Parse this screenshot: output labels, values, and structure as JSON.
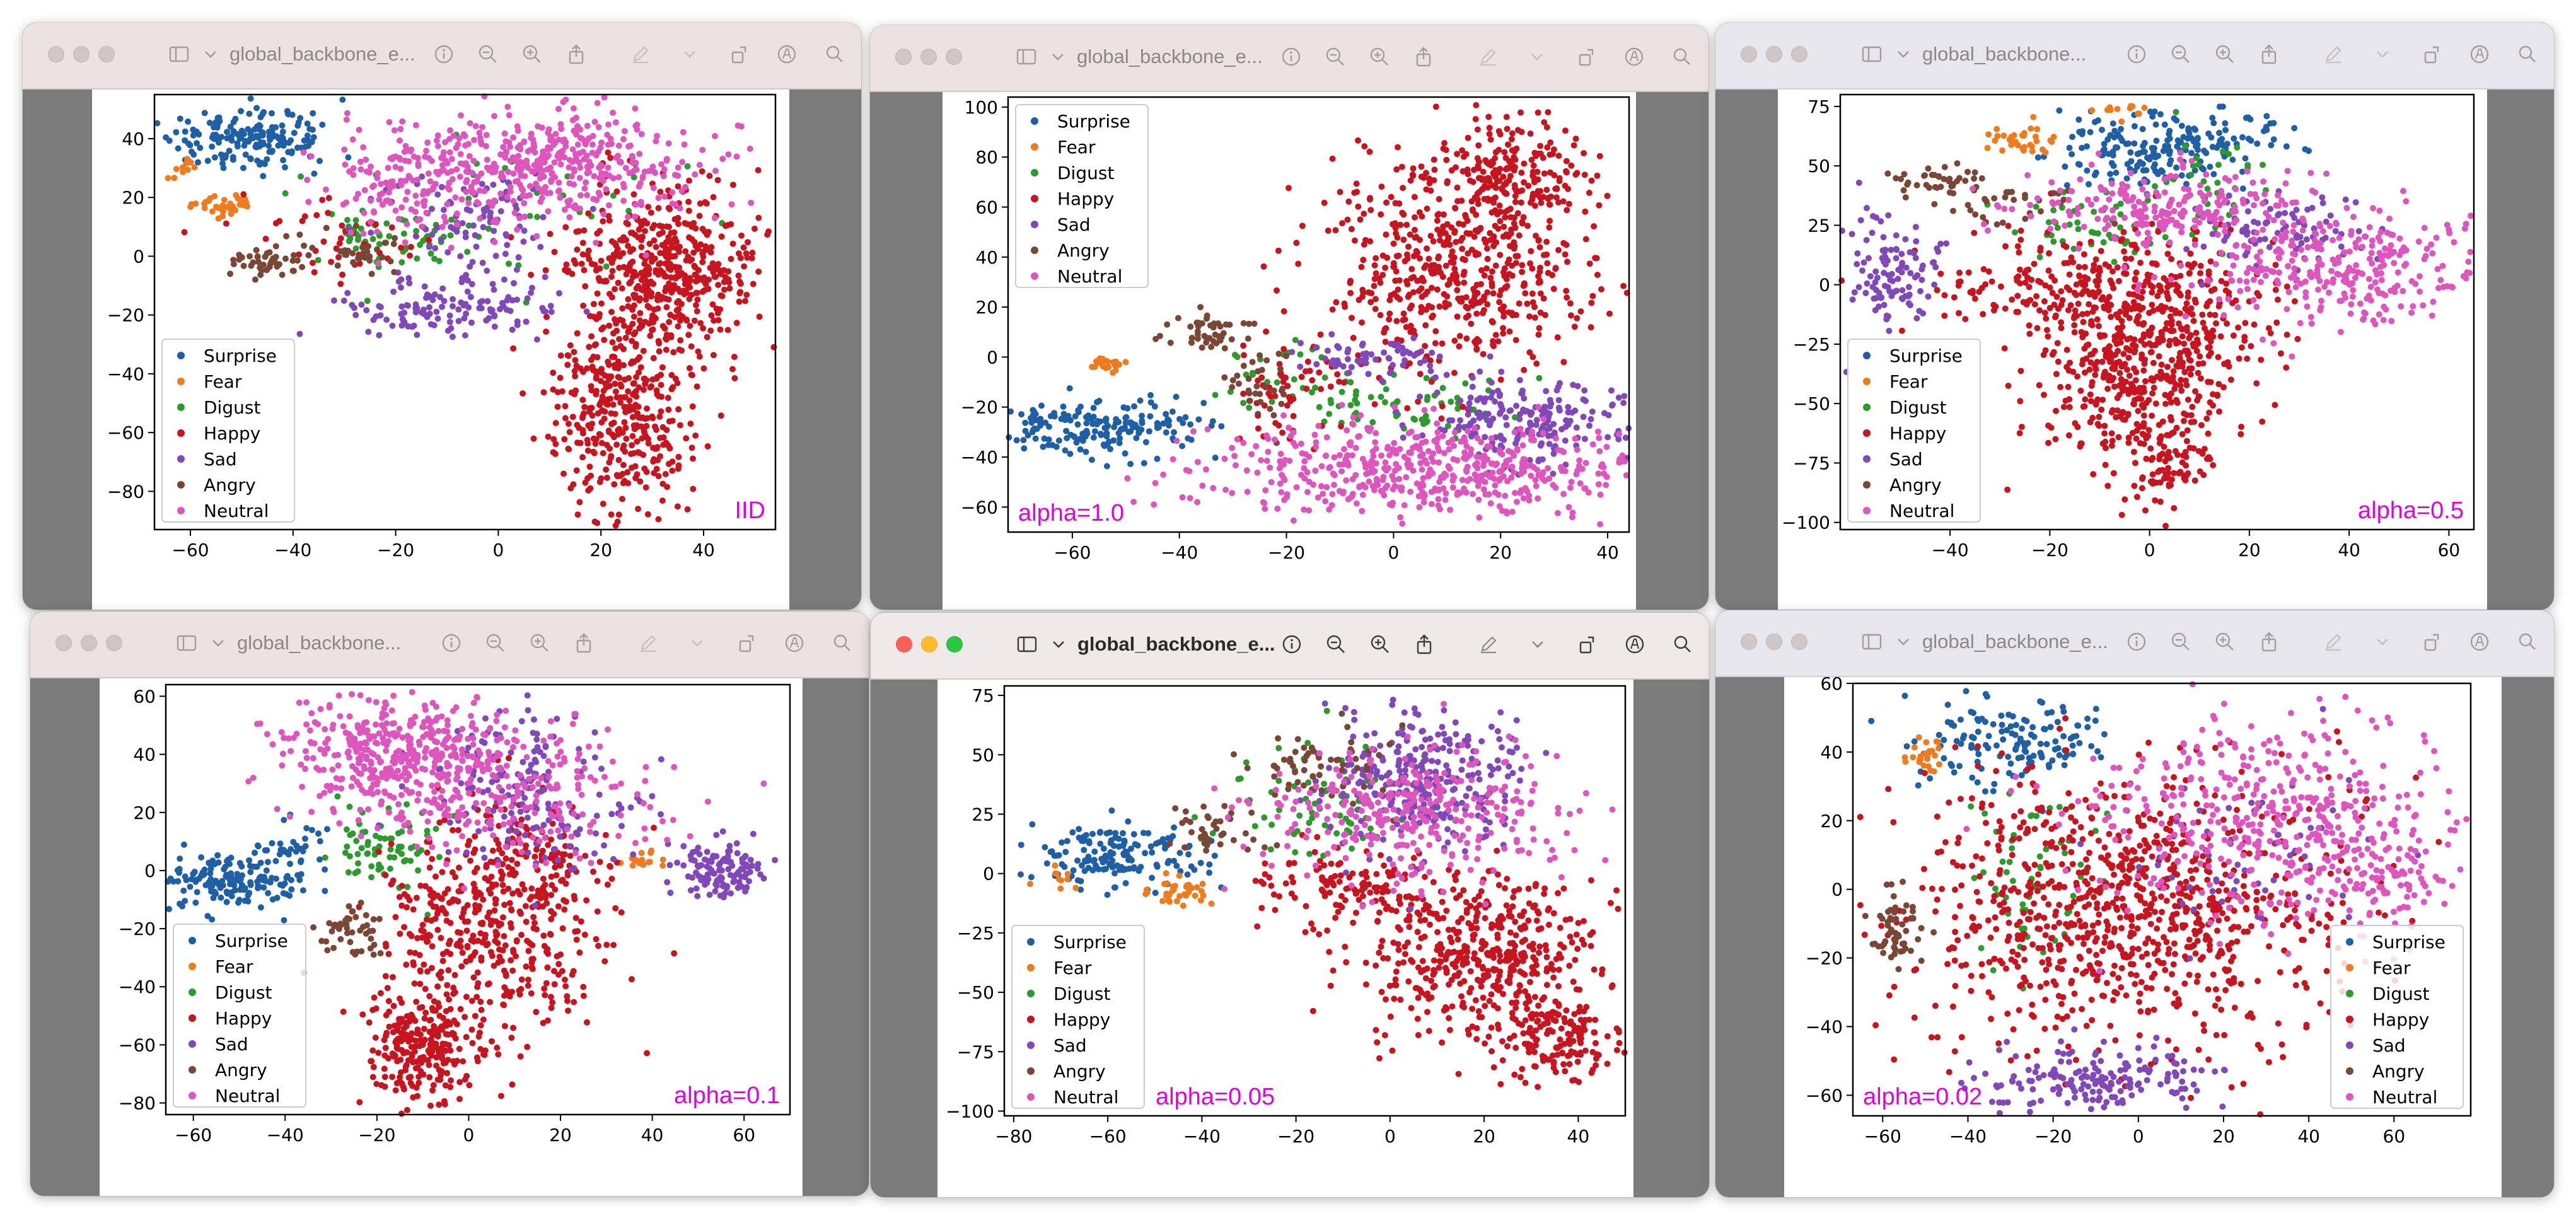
{
  "windows": [
    {
      "title": "global_backbone_e..."
    },
    {
      "title": "global_backbone_e..."
    },
    {
      "title": "global_backbone..."
    },
    {
      "title": "global_backbone..."
    },
    {
      "title": "global_backbone_e..."
    },
    {
      "title": "global_backbone_e..."
    }
  ],
  "colors": {
    "Surprise": "#1f5fa6",
    "Fear": "#f07b1e",
    "Digust": "#2e9a2e",
    "Happy": "#c8141e",
    "Sad": "#8048b8",
    "Angry": "#7a4636",
    "Neutral": "#de55be",
    "annotation": "#e000e0"
  },
  "icons": [
    "sidebar-icon",
    "chevron-down-icon",
    "info-icon",
    "zoom-out-icon",
    "zoom-in-icon",
    "share-icon",
    "markup-pen-icon",
    "chevron-down-icon",
    "rotate-icon",
    "annotate-circle-icon",
    "search-icon"
  ],
  "chart_data": [
    {
      "type": "scatter",
      "annotation": "IID",
      "xticks": [
        "−60",
        "−40",
        "−20",
        "0",
        "20",
        "40"
      ],
      "yticks": [
        "40",
        "20",
        "0",
        "−20",
        "−40",
        "−60",
        "−80"
      ],
      "xlim": [
        -67,
        54
      ],
      "ylim": [
        -93,
        55
      ],
      "legend_position": "lower-left",
      "series": [
        {
          "name": "Surprise",
          "clusters": [
            [
              -48,
              40,
              8,
              5,
              170
            ]
          ]
        },
        {
          "name": "Fear",
          "clusters": [
            [
              -53,
              17,
              3,
              2,
              35
            ],
            [
              -61,
              31,
              1.5,
              2,
              12
            ]
          ]
        },
        {
          "name": "Digust",
          "clusters": [
            [
              -22,
              6,
              6,
              4,
              55
            ],
            [
              5,
              15,
              18,
              12,
              40
            ]
          ]
        },
        {
          "name": "Happy",
          "clusters": [
            [
              32,
              -5,
              9,
              14,
              480
            ],
            [
              24,
              -52,
              7,
              17,
              380
            ],
            [
              -32,
              5,
              10,
              7,
              40
            ]
          ]
        },
        {
          "name": "Sad",
          "clusters": [
            [
              -8,
              -17,
              12,
              5,
              130
            ],
            [
              -5,
              12,
              8,
              8,
              90
            ]
          ]
        },
        {
          "name": "Angry",
          "clusters": [
            [
              -45,
              -2,
              4,
              3,
              45
            ],
            [
              -25,
              2,
              5,
              4,
              30
            ]
          ]
        },
        {
          "name": "Neutral",
          "clusters": [
            [
              10,
              32,
              15,
              10,
              420
            ],
            [
              -18,
              23,
              8,
              8,
              120
            ]
          ]
        }
      ]
    },
    {
      "type": "scatter",
      "annotation": "alpha=1.0",
      "xticks": [
        "−60",
        "−40",
        "−20",
        "0",
        "20",
        "40"
      ],
      "yticks": [
        "100",
        "80",
        "60",
        "40",
        "20",
        "0",
        "−20",
        "−40",
        "−60"
      ],
      "xlim": [
        -72,
        44
      ],
      "ylim": [
        -70,
        104
      ],
      "legend_position": "upper-left",
      "series": [
        {
          "name": "Surprise",
          "clusters": [
            [
              -55,
              -28,
              10,
              6,
              180
            ]
          ]
        },
        {
          "name": "Fear",
          "clusters": [
            [
              -53,
              -3,
              2,
              1.5,
              22
            ]
          ]
        },
        {
          "name": "Digust",
          "clusters": [
            [
              0,
              -18,
              12,
              6,
              70
            ],
            [
              -20,
              -5,
              6,
              6,
              25
            ]
          ]
        },
        {
          "name": "Happy",
          "clusters": [
            [
              10,
              35,
              12,
              22,
              520
            ],
            [
              22,
              72,
              7,
              14,
              220
            ],
            [
              -20,
              -15,
              5,
              10,
              50
            ]
          ]
        },
        {
          "name": "Sad",
          "clusters": [
            [
              25,
              -25,
              10,
              9,
              200
            ],
            [
              -5,
              0,
              7,
              4,
              60
            ]
          ]
        },
        {
          "name": "Angry",
          "clusters": [
            [
              -35,
              10,
              4,
              4,
              45
            ],
            [
              -25,
              -12,
              4,
              8,
              30
            ]
          ]
        },
        {
          "name": "Neutral",
          "clusters": [
            [
              8,
              -45,
              22,
              9,
              520
            ]
          ]
        }
      ]
    },
    {
      "type": "scatter",
      "annotation": "alpha=0.5",
      "xticks": [
        "−40",
        "−20",
        "0",
        "20",
        "40",
        "60"
      ],
      "yticks": [
        "75",
        "50",
        "25",
        "0",
        "−25",
        "−50",
        "−75",
        "−100"
      ],
      "xlim": [
        -62,
        65
      ],
      "ylim": [
        -103,
        80
      ],
      "legend_position": "lower-left",
      "series": [
        {
          "name": "Surprise",
          "clusters": [
            [
              2,
              58,
              11,
              8,
              200
            ]
          ]
        },
        {
          "name": "Fear",
          "clusters": [
            [
              -26,
              60,
              4,
              4,
              35
            ],
            [
              -5,
              73,
              3,
              2,
              12
            ]
          ]
        },
        {
          "name": "Digust",
          "clusters": [
            [
              -10,
              23,
              8,
              6,
              50
            ],
            [
              14,
              40,
              6,
              10,
              35
            ]
          ]
        },
        {
          "name": "Happy",
          "clusters": [
            [
              0,
              -32,
              11,
              22,
              520
            ],
            [
              -10,
              0,
              18,
              10,
              250
            ],
            [
              3,
              -75,
              4,
              10,
              80
            ]
          ]
        },
        {
          "name": "Sad",
          "clusters": [
            [
              -52,
              7,
              5,
              11,
              110
            ],
            [
              25,
              22,
              9,
              8,
              90
            ]
          ]
        },
        {
          "name": "Angry",
          "clusters": [
            [
              -42,
              44,
              5,
              3,
              40
            ],
            [
              -28,
              33,
              6,
              5,
              30
            ]
          ]
        },
        {
          "name": "Neutral",
          "clusters": [
            [
              40,
              7,
              16,
              11,
              300
            ],
            [
              5,
              33,
              18,
              8,
              220
            ]
          ]
        }
      ]
    },
    {
      "type": "scatter",
      "annotation": "alpha=0.1",
      "xticks": [
        "−60",
        "−40",
        "−20",
        "0",
        "20",
        "40",
        "60"
      ],
      "yticks": [
        "60",
        "40",
        "20",
        "0",
        "−20",
        "−40",
        "−60",
        "−80"
      ],
      "xlim": [
        -66,
        70
      ],
      "ylim": [
        -84,
        64
      ],
      "legend_position": "lower-left",
      "series": [
        {
          "name": "Surprise",
          "clusters": [
            [
              -52,
              -3,
              8,
              5,
              150
            ],
            [
              -38,
              5,
              4,
              6,
              40
            ]
          ]
        },
        {
          "name": "Fear",
          "clusters": [
            [
              38,
              3,
              2,
              2,
              18
            ]
          ]
        },
        {
          "name": "Digust",
          "clusters": [
            [
              -18,
              8,
              7,
              7,
              70
            ]
          ]
        },
        {
          "name": "Happy",
          "clusters": [
            [
              5,
              -18,
              12,
              18,
              420
            ],
            [
              -10,
              -60,
              7,
              10,
              250
            ],
            [
              15,
              5,
              8,
              8,
              80
            ]
          ]
        },
        {
          "name": "Sad",
          "clusters": [
            [
              55,
              0,
              5,
              5,
              120
            ],
            [
              10,
              30,
              10,
              12,
              120
            ],
            [
              20,
              15,
              10,
              8,
              60
            ]
          ]
        },
        {
          "name": "Angry",
          "clusters": [
            [
              -26,
              -22,
              4,
              5,
              45
            ]
          ]
        },
        {
          "name": "Neutral",
          "clusters": [
            [
              -15,
              40,
              12,
              10,
              420
            ],
            [
              15,
              25,
              15,
              12,
              180
            ]
          ]
        }
      ]
    },
    {
      "type": "scatter",
      "annotation": "alpha=0.05",
      "xticks": [
        "−80",
        "−60",
        "−40",
        "−20",
        "0",
        "20",
        "40"
      ],
      "yticks": [
        "75",
        "50",
        "25",
        "0",
        "−25",
        "−50",
        "−75",
        "−100"
      ],
      "xlim": [
        -82,
        50
      ],
      "ylim": [
        -102,
        79
      ],
      "legend_position": "lower-left",
      "series": [
        {
          "name": "Surprise",
          "clusters": [
            [
              -58,
              7,
              9,
              6,
              160
            ]
          ]
        },
        {
          "name": "Fear",
          "clusters": [
            [
              -45,
              -8,
              4,
              3,
              35
            ],
            [
              -70,
              -2,
              2,
              2,
              10
            ]
          ]
        },
        {
          "name": "Digust",
          "clusters": [
            [
              -15,
              30,
              10,
              12,
              70
            ]
          ]
        },
        {
          "name": "Happy",
          "clusters": [
            [
              20,
              -35,
              12,
              18,
              460
            ],
            [
              35,
              -70,
              6,
              10,
              150
            ],
            [
              -10,
              -5,
              10,
              8,
              120
            ]
          ]
        },
        {
          "name": "Sad",
          "clusters": [
            [
              8,
              40,
              10,
              14,
              300
            ]
          ]
        },
        {
          "name": "Angry",
          "clusters": [
            [
              -15,
              45,
              8,
              8,
              60
            ],
            [
              -38,
              18,
              5,
              6,
              40
            ]
          ]
        },
        {
          "name": "Neutral",
          "clusters": [
            [
              5,
              25,
              16,
              16,
              320
            ]
          ]
        }
      ]
    },
    {
      "type": "scatter",
      "annotation": "alpha=0.02",
      "xticks": [
        "−60",
        "−40",
        "−20",
        "0",
        "20",
        "40",
        "60"
      ],
      "yticks": [
        "60",
        "40",
        "20",
        "0",
        "−20",
        "−40",
        "−60"
      ],
      "xlim": [
        -67,
        78
      ],
      "ylim": [
        -66,
        60
      ],
      "legend_position": "lower-right",
      "series": [
        {
          "name": "Surprise",
          "clusters": [
            [
              -30,
              44,
              12,
              6,
              140
            ]
          ]
        },
        {
          "name": "Fear",
          "clusters": [
            [
              -50,
              38,
              2,
              3,
              25
            ]
          ]
        },
        {
          "name": "Digust",
          "clusters": [
            [
              -25,
              5,
              8,
              12,
              60
            ]
          ]
        },
        {
          "name": "Happy",
          "clusters": [
            [
              -5,
              -5,
              25,
              20,
              900
            ]
          ]
        },
        {
          "name": "Sad",
          "clusters": [
            [
              -10,
              -55,
              14,
              5,
              170
            ],
            [
              25,
              10,
              15,
              12,
              60
            ]
          ]
        },
        {
          "name": "Angry",
          "clusters": [
            [
              -57,
              -12,
              3,
              6,
              55
            ]
          ]
        },
        {
          "name": "Neutral",
          "clusters": [
            [
              30,
              20,
              20,
              15,
              400
            ],
            [
              60,
              5,
              8,
              10,
              100
            ]
          ]
        }
      ]
    }
  ]
}
